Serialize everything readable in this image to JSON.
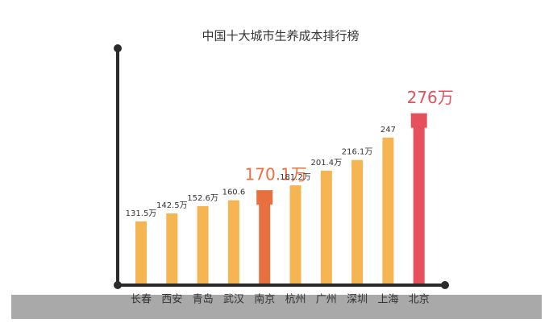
{
  "chart_data": {
    "type": "bar",
    "title": "中国十大城市生养成本排行榜",
    "categories": [
      "长春",
      "西安",
      "青岛",
      "武汉",
      "南京",
      "杭州",
      "广州",
      "深圳",
      "上海",
      "北京"
    ],
    "values": [
      131.5,
      142.5,
      152.6,
      160.6,
      170.1,
      181.2,
      201.4,
      216.1,
      247,
      276
    ],
    "value_labels": [
      "131.5万",
      "142.5万",
      "152.6万",
      "160.6",
      "170.1万",
      "181.2万",
      "201.4万",
      "216.1万",
      "247",
      "276万"
    ],
    "colors": [
      "#f4b552",
      "#f4b552",
      "#f4b552",
      "#f4b552",
      "#e8703f",
      "#f4b552",
      "#f4b552",
      "#f4b552",
      "#f4b552",
      "#e6505c"
    ],
    "ylim": [
      46,
      290
    ]
  }
}
